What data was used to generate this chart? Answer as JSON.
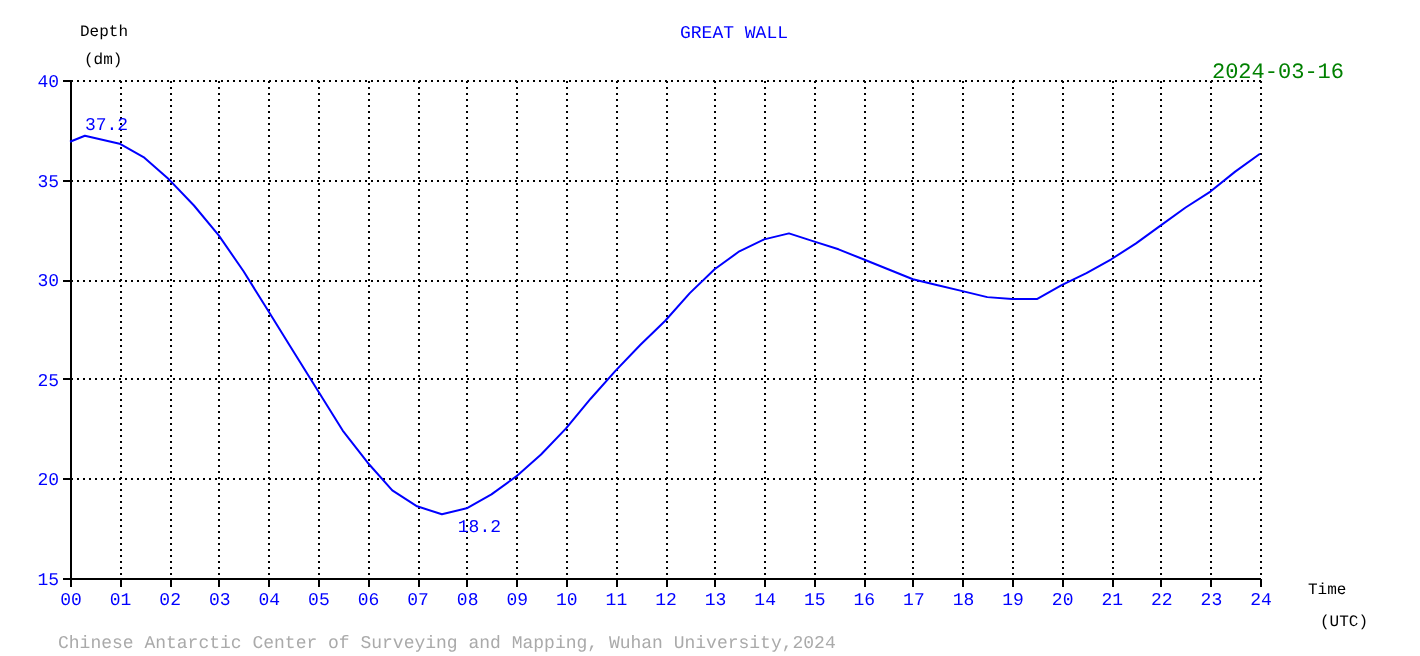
{
  "chart_data": {
    "type": "line",
    "title": "GREAT WALL",
    "xlabel": "Time (UTC)",
    "ylabel": "Depth (dm)",
    "x": [
      0,
      0.3,
      1,
      1.5,
      2,
      2.5,
      3,
      3.5,
      4,
      4.5,
      5,
      5.5,
      6,
      6.5,
      7,
      7.5,
      8,
      8.5,
      9,
      9.5,
      10,
      10.5,
      11,
      11.5,
      12,
      12.5,
      13,
      13.5,
      14,
      14.5,
      15,
      15.5,
      16,
      16.5,
      17,
      17.5,
      18,
      18.5,
      19,
      19.5,
      20,
      20.5,
      21,
      21.5,
      22,
      22.5,
      23,
      23.5,
      24
    ],
    "series": [
      {
        "color": "#0000ff",
        "values": [
          36.9,
          37.2,
          36.8,
          36.1,
          35.0,
          33.7,
          32.2,
          30.4,
          28.4,
          26.4,
          24.4,
          22.4,
          20.8,
          19.4,
          18.6,
          18.2,
          18.5,
          19.2,
          20.1,
          21.2,
          22.5,
          24.0,
          25.4,
          26.7,
          27.9,
          29.3,
          30.5,
          31.4,
          32.0,
          32.3,
          31.9,
          31.5,
          31.0,
          30.5,
          30.0,
          29.7,
          29.4,
          29.1,
          29.0,
          29.0,
          29.7,
          30.3,
          31.0,
          31.8,
          32.7,
          33.6,
          34.4,
          35.4,
          36.3
        ]
      }
    ],
    "xlim": [
      0,
      24
    ],
    "ylim": [
      15,
      40
    ],
    "xticks": [
      {
        "value": 0,
        "label": "00"
      },
      {
        "value": 1,
        "label": "01"
      },
      {
        "value": 2,
        "label": "02"
      },
      {
        "value": 3,
        "label": "03"
      },
      {
        "value": 4,
        "label": "04"
      },
      {
        "value": 5,
        "label": "05"
      },
      {
        "value": 6,
        "label": "06"
      },
      {
        "value": 7,
        "label": "07"
      },
      {
        "value": 8,
        "label": "08"
      },
      {
        "value": 9,
        "label": "09"
      },
      10,
      11,
      12,
      13,
      14,
      15,
      16,
      17,
      18,
      19,
      20,
      21,
      22,
      23,
      24
    ],
    "yticks": [
      15,
      20,
      25,
      30,
      35,
      40
    ],
    "annotations": [
      {
        "text": "37.2",
        "x": 0.3,
        "y": 37.2
      },
      {
        "text": "18.2",
        "x": 7.7,
        "y": 18.2
      },
      "2024-03-16",
      "Chinese Antarctic Center of Surveying and Mapping, Wuhan University,2024"
    ],
    "grid": true,
    "marker": "none",
    "line_style": "solid"
  }
}
